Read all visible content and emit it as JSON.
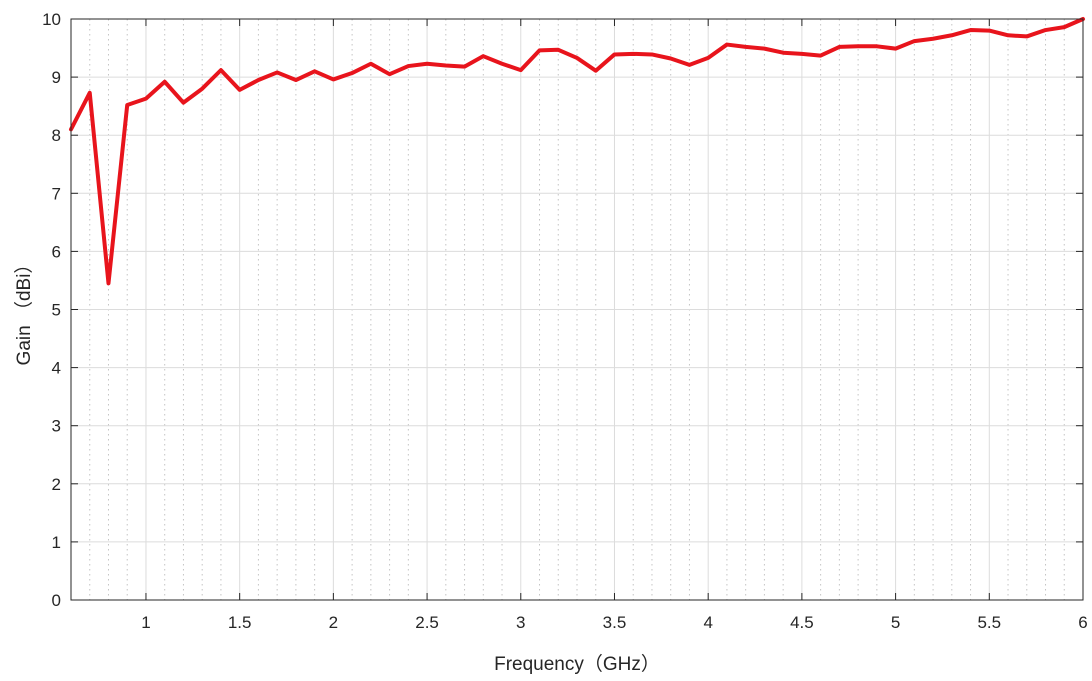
{
  "chart_data": {
    "type": "line",
    "title": "",
    "xlabel": "Frequency（GHz）",
    "ylabel": "Gain （dBi）",
    "xlim": [
      0.6,
      6
    ],
    "ylim": [
      0,
      10
    ],
    "x_ticks": [
      1,
      1.5,
      2,
      2.5,
      3,
      3.5,
      4,
      4.5,
      5,
      5.5,
      6
    ],
    "x_tick_labels": [
      "1",
      "1.5",
      "2",
      "2.5",
      "3",
      "3.5",
      "4",
      "4.5",
      "5",
      "5.5",
      "6"
    ],
    "y_ticks": [
      0,
      1,
      2,
      3,
      4,
      5,
      6,
      7,
      8,
      9,
      10
    ],
    "y_tick_labels": [
      "0",
      "1",
      "2",
      "3",
      "4",
      "5",
      "6",
      "7",
      "8",
      "9",
      "10"
    ],
    "x_minor_step": 0.1,
    "grid": {
      "major": true,
      "minor": true
    },
    "legend": "none",
    "colors": {
      "line": "#e8141c",
      "major_grid": "#dcdcdc",
      "minor_grid": "#c4c4c4",
      "axis": "#262626",
      "background": "#ffffff"
    },
    "series": [
      {
        "x": [
          0.6,
          0.7,
          0.8,
          0.9,
          1.0,
          1.1,
          1.2,
          1.3,
          1.4,
          1.5,
          1.6,
          1.7,
          1.8,
          1.9,
          2.0,
          2.1,
          2.2,
          2.3,
          2.4,
          2.5,
          2.6,
          2.7,
          2.8,
          2.9,
          3.0,
          3.1,
          3.2,
          3.3,
          3.4,
          3.5,
          3.6,
          3.7,
          3.8,
          3.9,
          4.0,
          4.1,
          4.2,
          4.3,
          4.4,
          4.5,
          4.6,
          4.7,
          4.8,
          4.9,
          5.0,
          5.1,
          5.2,
          5.3,
          5.4,
          5.5,
          5.6,
          5.7,
          5.8,
          5.9,
          6.0
        ],
        "values": [
          8.1,
          8.73,
          5.45,
          8.52,
          8.63,
          8.92,
          8.56,
          8.8,
          9.12,
          8.78,
          8.95,
          9.08,
          8.95,
          9.1,
          8.96,
          9.07,
          9.23,
          9.05,
          9.19,
          9.23,
          9.2,
          9.18,
          9.36,
          9.23,
          9.12,
          9.46,
          9.47,
          9.33,
          9.11,
          9.39,
          9.4,
          9.39,
          9.32,
          9.21,
          9.33,
          9.56,
          9.52,
          9.49,
          9.42,
          9.4,
          9.37,
          9.52,
          9.53,
          9.53,
          9.49,
          9.62,
          9.66,
          9.72,
          9.81,
          9.8,
          9.72,
          9.7,
          9.81,
          9.86,
          10.0
        ]
      }
    ]
  }
}
